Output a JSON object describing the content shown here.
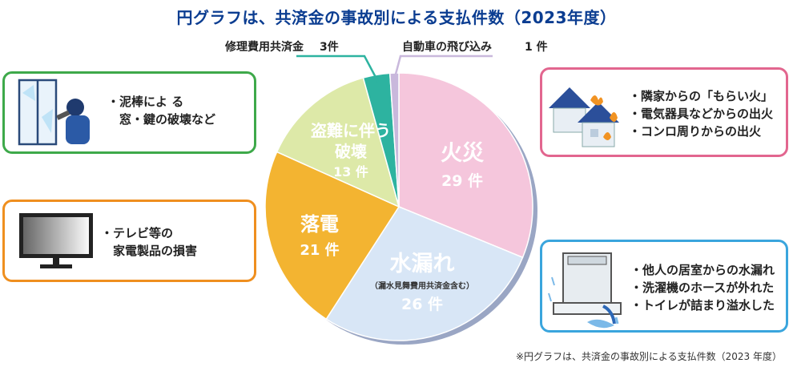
{
  "title": "円グラフは、共済金の事故別による支払件数（2023年度）",
  "footnote": "※円グラフは、共済金の事故別による支払件数（2023 年度）",
  "chart_data": {
    "type": "pie",
    "unit": "件",
    "slices": [
      {
        "label": "火災",
        "value": 29,
        "value_text": "29 件",
        "color": "#f5c6dc",
        "text_color": "#ffffff"
      },
      {
        "label": "水漏れ",
        "sublabel": "（漏水見舞費用共済金含む）",
        "value": 26,
        "value_text": "26 件",
        "color": "#d8e6f6",
        "text_color": "#ffffff"
      },
      {
        "label": "落電",
        "value": 21,
        "value_text": "21 件",
        "color": "#f3b431",
        "text_color": "#ffffff"
      },
      {
        "label": "盗難に伴う破壊",
        "label_lines": [
          "盗難に伴う",
          "破壊"
        ],
        "value": 13,
        "value_text": "13 件",
        "color": "#dde9a8",
        "text_color": "#ffffff"
      },
      {
        "label": "修理費用共済金",
        "value": 3,
        "value_text": "3件",
        "color": "#2db3a0"
      },
      {
        "label": "自動車の飛び込み",
        "value": 1,
        "value_text": "1 件",
        "color": "#c9b8dc"
      }
    ],
    "legend": "none"
  },
  "cards": {
    "theft": {
      "lines": [
        "・泥棒によ る",
        "　窓・鍵の破壊など"
      ],
      "color": "#3ea94a"
    },
    "tv": {
      "lines": [
        "・テレビ等の",
        "　家電製品の損害"
      ],
      "color": "#ef8f1f"
    },
    "fire": {
      "lines": [
        "・隣家からの「もらい火」",
        "・電気器具などからの出火",
        "・コンロ周りからの出火"
      ],
      "color": "#e2668f"
    },
    "water": {
      "lines": [
        "・他人の居室からの水漏れ",
        "・洗濯機のホースが外れた",
        "・トイレが詰まり溢水した"
      ],
      "color": "#3aa5dd"
    }
  },
  "icons": {
    "theft": "burglar-icon",
    "tv": "tv-icon",
    "fire": "burning-houses-icon",
    "water": "washing-machine-leak-icon"
  }
}
